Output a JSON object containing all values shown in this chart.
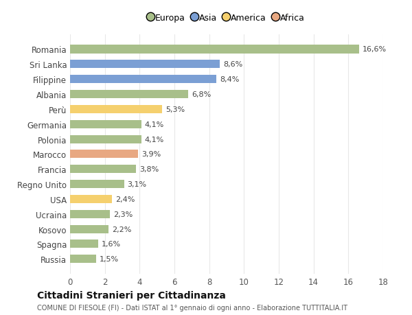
{
  "categories": [
    "Romania",
    "Sri Lanka",
    "Filippine",
    "Albania",
    "Perù",
    "Germania",
    "Polonia",
    "Marocco",
    "Francia",
    "Regno Unito",
    "USA",
    "Ucraina",
    "Kosovo",
    "Spagna",
    "Russia"
  ],
  "values": [
    16.6,
    8.6,
    8.4,
    6.8,
    5.3,
    4.1,
    4.1,
    3.9,
    3.8,
    3.1,
    2.4,
    2.3,
    2.2,
    1.6,
    1.5
  ],
  "labels": [
    "16,6%",
    "8,6%",
    "8,4%",
    "6,8%",
    "5,3%",
    "4,1%",
    "4,1%",
    "3,9%",
    "3,8%",
    "3,1%",
    "2,4%",
    "2,3%",
    "2,2%",
    "1,6%",
    "1,5%"
  ],
  "colors": [
    "#a8bf8a",
    "#7b9fd4",
    "#7b9fd4",
    "#a8bf8a",
    "#f5d06e",
    "#a8bf8a",
    "#a8bf8a",
    "#e8a882",
    "#a8bf8a",
    "#a8bf8a",
    "#f5d06e",
    "#a8bf8a",
    "#a8bf8a",
    "#a8bf8a",
    "#a8bf8a"
  ],
  "legend": [
    {
      "label": "Europa",
      "color": "#a8bf8a"
    },
    {
      "label": "Asia",
      "color": "#7b9fd4"
    },
    {
      "label": "America",
      "color": "#f5d06e"
    },
    {
      "label": "Africa",
      "color": "#e8a882"
    }
  ],
  "xlim": [
    0,
    18
  ],
  "xticks": [
    0,
    2,
    4,
    6,
    8,
    10,
    12,
    14,
    16,
    18
  ],
  "title": "Cittadini Stranieri per Cittadinanza",
  "subtitle": "COMUNE DI FIESOLE (FI) - Dati ISTAT al 1° gennaio di ogni anno - Elaborazione TUTTITALIA.IT",
  "bg_color": "#ffffff",
  "plot_bg_color": "#ffffff",
  "grid_color": "#e8e8e8",
  "bar_height": 0.55,
  "label_fontsize": 8.0,
  "ytick_fontsize": 8.5,
  "xtick_fontsize": 8.5
}
